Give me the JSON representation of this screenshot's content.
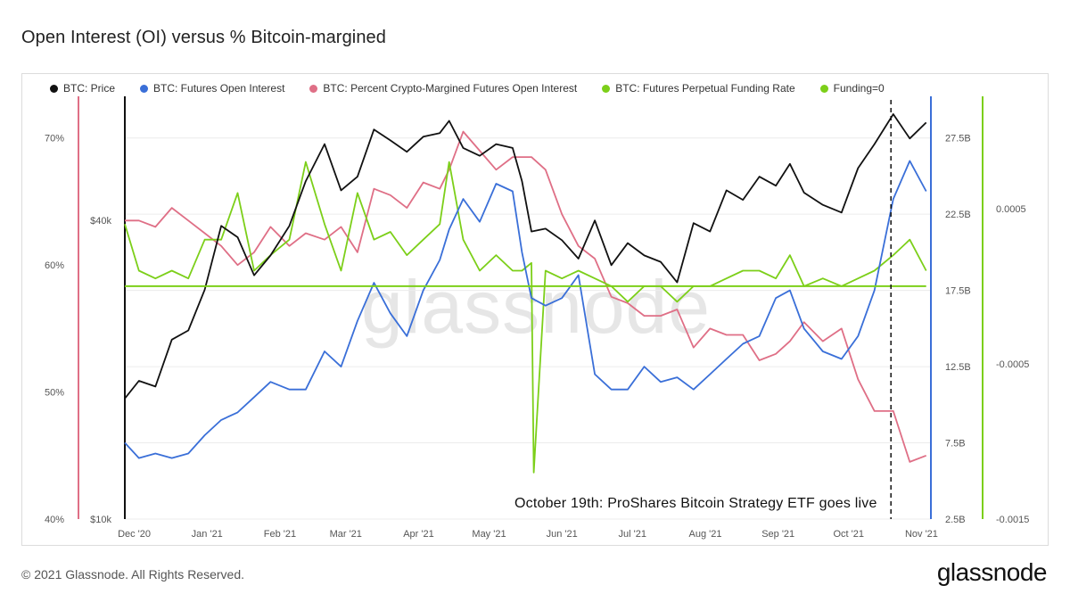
{
  "title": "Open Interest (OI) versus % Bitcoin-margined",
  "watermark": "glassnode",
  "footer": {
    "copyright": "© 2021 Glassnode. All Rights Reserved.",
    "brand": "glassnode"
  },
  "annotation": "October 19th: ProShares Bitcoin Strategy ETF goes live",
  "colors": {
    "price": "#111111",
    "oi": "#3a6fd8",
    "pct": "#df6f86",
    "funding": "#7ccf19",
    "zero": "#7ccf19"
  },
  "chart_data": {
    "type": "line",
    "x_ticks": [
      "Dec '20",
      "Jan '21",
      "Feb '21",
      "Mar '21",
      "Apr '21",
      "May '21",
      "Jun '21",
      "Jul '21",
      "Aug '21",
      "Sep '21",
      "Oct '21",
      "Nov '21"
    ],
    "x_range": [
      "2020-11-27",
      "2021-11-05"
    ],
    "event_date": "2021-10-19",
    "axes": {
      "pct": {
        "ticks": [
          "40%",
          "50%",
          "60%",
          "70%"
        ],
        "tick_values": [
          40,
          50,
          60,
          70
        ],
        "range": [
          40,
          73
        ]
      },
      "price": {
        "ticks": [
          "$10k",
          "$40k"
        ],
        "tick_values": [
          10000,
          40000
        ],
        "scale": "log",
        "range": [
          10000,
          70000
        ]
      },
      "oi": {
        "ticks": [
          "2.5B",
          "7.5B",
          "12.5B",
          "17.5B",
          "22.5B",
          "27.5B"
        ],
        "tick_values": [
          2.5,
          7.5,
          12.5,
          17.5,
          22.5,
          27.5
        ],
        "range": [
          2.5,
          30
        ]
      },
      "funding": {
        "ticks": [
          "-0.0015",
          "-0.0005",
          "0.0005"
        ],
        "tick_values": [
          -0.0015,
          -0.0005,
          0.0005
        ],
        "range": [
          -0.0015,
          0.0012
        ]
      }
    },
    "series": [
      {
        "name": "BTC: Price",
        "axis": "price",
        "color": "#111111",
        "x": [
          "2020-11-27",
          "2020-12-03",
          "2020-12-10",
          "2020-12-17",
          "2020-12-24",
          "2020-12-31",
          "2021-01-07",
          "2021-01-14",
          "2021-01-21",
          "2021-01-28",
          "2021-02-05",
          "2021-02-12",
          "2021-02-20",
          "2021-02-27",
          "2021-03-06",
          "2021-03-13",
          "2021-03-20",
          "2021-03-27",
          "2021-04-03",
          "2021-04-10",
          "2021-04-14",
          "2021-04-20",
          "2021-04-27",
          "2021-05-04",
          "2021-05-11",
          "2021-05-15",
          "2021-05-19",
          "2021-05-25",
          "2021-06-01",
          "2021-06-08",
          "2021-06-15",
          "2021-06-22",
          "2021-06-29",
          "2021-07-06",
          "2021-07-13",
          "2021-07-20",
          "2021-07-27",
          "2021-08-03",
          "2021-08-10",
          "2021-08-17",
          "2021-08-24",
          "2021-08-31",
          "2021-09-06",
          "2021-09-12",
          "2021-09-20",
          "2021-09-28",
          "2021-10-05",
          "2021-10-12",
          "2021-10-20",
          "2021-10-27",
          "2021-11-03"
        ],
        "values": [
          17500,
          19000,
          18500,
          23000,
          24000,
          29000,
          39000,
          37000,
          31000,
          34000,
          39000,
          48000,
          57000,
          46000,
          49000,
          61000,
          58000,
          55000,
          59000,
          60000,
          63500,
          56000,
          54000,
          57000,
          56000,
          48000,
          38000,
          38500,
          36500,
          33500,
          40000,
          32500,
          36000,
          34000,
          33000,
          30000,
          39500,
          38000,
          46000,
          44000,
          49000,
          47000,
          52000,
          45500,
          43000,
          41500,
          51000,
          57000,
          65500,
          58500,
          63000
        ]
      },
      {
        "name": "BTC: Futures Open Interest",
        "axis": "oi",
        "color": "#3a6fd8",
        "x": [
          "2020-11-27",
          "2020-12-03",
          "2020-12-10",
          "2020-12-17",
          "2020-12-24",
          "2020-12-31",
          "2021-01-07",
          "2021-01-14",
          "2021-01-21",
          "2021-01-28",
          "2021-02-05",
          "2021-02-12",
          "2021-02-20",
          "2021-02-27",
          "2021-03-06",
          "2021-03-13",
          "2021-03-20",
          "2021-03-27",
          "2021-04-03",
          "2021-04-10",
          "2021-04-14",
          "2021-04-20",
          "2021-04-27",
          "2021-05-04",
          "2021-05-11",
          "2021-05-15",
          "2021-05-19",
          "2021-05-25",
          "2021-06-01",
          "2021-06-08",
          "2021-06-15",
          "2021-06-22",
          "2021-06-29",
          "2021-07-06",
          "2021-07-13",
          "2021-07-20",
          "2021-07-27",
          "2021-08-03",
          "2021-08-10",
          "2021-08-17",
          "2021-08-24",
          "2021-08-31",
          "2021-09-06",
          "2021-09-12",
          "2021-09-20",
          "2021-09-28",
          "2021-10-05",
          "2021-10-12",
          "2021-10-20",
          "2021-10-27",
          "2021-11-03"
        ],
        "values": [
          7.5,
          6.5,
          6.8,
          6.5,
          6.8,
          8.0,
          9.0,
          9.5,
          10.5,
          11.5,
          11.0,
          11.0,
          13.5,
          12.5,
          15.5,
          18.0,
          16.0,
          14.5,
          17.5,
          19.5,
          21.5,
          23.5,
          22.0,
          24.5,
          24.0,
          20.0,
          17.0,
          16.5,
          17.0,
          18.5,
          12.0,
          11.0,
          11.0,
          12.5,
          11.5,
          11.8,
          11.0,
          12.0,
          13.0,
          14.0,
          14.5,
          17.0,
          17.5,
          15.0,
          13.5,
          13.0,
          14.5,
          17.5,
          23.5,
          26.0,
          24.0
        ]
      },
      {
        "name": "BTC: Percent Crypto-Margined Futures Open Interest",
        "axis": "pct",
        "color": "#df6f86",
        "x": [
          "2020-11-27",
          "2020-12-03",
          "2020-12-10",
          "2020-12-17",
          "2020-12-24",
          "2020-12-31",
          "2021-01-07",
          "2021-01-14",
          "2021-01-21",
          "2021-01-28",
          "2021-02-05",
          "2021-02-12",
          "2021-02-20",
          "2021-02-27",
          "2021-03-06",
          "2021-03-13",
          "2021-03-20",
          "2021-03-27",
          "2021-04-03",
          "2021-04-10",
          "2021-04-14",
          "2021-04-20",
          "2021-04-27",
          "2021-05-04",
          "2021-05-11",
          "2021-05-15",
          "2021-05-19",
          "2021-05-25",
          "2021-06-01",
          "2021-06-08",
          "2021-06-15",
          "2021-06-22",
          "2021-06-29",
          "2021-07-06",
          "2021-07-13",
          "2021-07-20",
          "2021-07-27",
          "2021-08-03",
          "2021-08-10",
          "2021-08-17",
          "2021-08-24",
          "2021-08-31",
          "2021-09-06",
          "2021-09-12",
          "2021-09-20",
          "2021-09-28",
          "2021-10-05",
          "2021-10-12",
          "2021-10-20",
          "2021-10-27",
          "2021-11-03"
        ],
        "values": [
          63.5,
          63.5,
          63.0,
          64.5,
          63.5,
          62.5,
          61.5,
          60.0,
          61.0,
          63.0,
          61.5,
          62.5,
          62.0,
          63.0,
          61.0,
          66.0,
          65.5,
          64.5,
          66.5,
          66.0,
          67.5,
          70.5,
          69.0,
          67.5,
          68.5,
          68.5,
          68.5,
          67.5,
          64.0,
          61.5,
          60.5,
          57.5,
          57.0,
          56.0,
          56.0,
          56.5,
          53.5,
          55.0,
          54.5,
          54.5,
          52.5,
          53.0,
          54.0,
          55.5,
          54.0,
          55.0,
          51.0,
          48.5,
          48.5,
          44.5,
          45.0
        ]
      },
      {
        "name": "BTC: Futures Perpetual Funding Rate",
        "axis": "funding",
        "color": "#7ccf19",
        "x": [
          "2020-11-27",
          "2020-12-03",
          "2020-12-10",
          "2020-12-17",
          "2020-12-24",
          "2020-12-31",
          "2021-01-07",
          "2021-01-14",
          "2021-01-21",
          "2021-01-28",
          "2021-02-05",
          "2021-02-12",
          "2021-02-20",
          "2021-02-27",
          "2021-03-06",
          "2021-03-13",
          "2021-03-20",
          "2021-03-27",
          "2021-04-03",
          "2021-04-10",
          "2021-04-14",
          "2021-04-20",
          "2021-04-27",
          "2021-05-04",
          "2021-05-11",
          "2021-05-15",
          "2021-05-19",
          "2021-05-20",
          "2021-05-25",
          "2021-06-01",
          "2021-06-08",
          "2021-06-15",
          "2021-06-22",
          "2021-06-29",
          "2021-07-06",
          "2021-07-13",
          "2021-07-20",
          "2021-07-27",
          "2021-08-03",
          "2021-08-10",
          "2021-08-17",
          "2021-08-24",
          "2021-08-31",
          "2021-09-06",
          "2021-09-12",
          "2021-09-20",
          "2021-09-28",
          "2021-10-05",
          "2021-10-12",
          "2021-10-20",
          "2021-10-27",
          "2021-11-03"
        ],
        "values": [
          0.0004,
          0.0001,
          5e-05,
          0.0001,
          5e-05,
          0.0003,
          0.0003,
          0.0006,
          0.0001,
          0.0002,
          0.0003,
          0.0008,
          0.0004,
          0.0001,
          0.0006,
          0.0003,
          0.00035,
          0.0002,
          0.0003,
          0.0004,
          0.0008,
          0.0003,
          0.0001,
          0.0002,
          0.0001,
          0.0001,
          0.00015,
          -0.0012,
          0.0001,
          5e-05,
          0.0001,
          5e-05,
          0.0,
          -0.0001,
          0.0,
          0.0,
          -0.0001,
          0.0,
          0.0,
          5e-05,
          0.0001,
          0.0001,
          5e-05,
          0.0002,
          0.0,
          5e-05,
          0.0,
          5e-05,
          0.0001,
          0.0002,
          0.0003,
          0.0001
        ]
      },
      {
        "name": "Funding=0",
        "axis": "funding",
        "color": "#7ccf19",
        "x": [
          "2020-11-27",
          "2021-11-03"
        ],
        "values": [
          0,
          0
        ]
      }
    ]
  }
}
